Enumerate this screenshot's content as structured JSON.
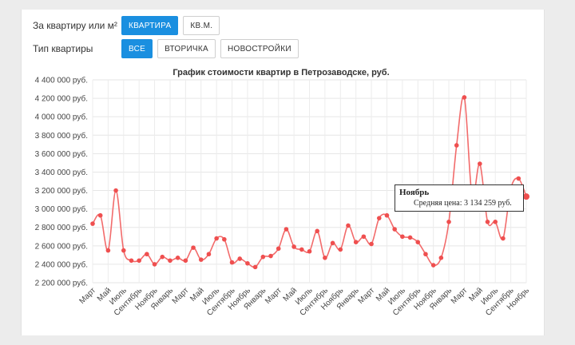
{
  "controls": {
    "area_label": "За квартиру или м²",
    "area_options": [
      "КВАРТИРА",
      "КВ.М."
    ],
    "area_selected": 0,
    "type_label": "Тип квартиры",
    "type_options": [
      "ВСЕ",
      "ВТОРИЧКА",
      "НОВОСТРОЙКИ"
    ],
    "type_selected": 0
  },
  "colors": {
    "accent": "#1a8fe0",
    "line": "#f26b6b",
    "point": "#ef4f4f"
  },
  "tooltip": {
    "title": "Ноябрь",
    "body": "Средняя цена: 3 134 259 руб."
  },
  "chart_data": {
    "type": "line",
    "title": "График стоимости квартир в Петрозаводске, руб.",
    "ylim": [
      2200000,
      4400000
    ],
    "yticks": [
      "4 400 000 руб.",
      "4 200 000 руб.",
      "4 000 000 руб.",
      "3 800 000 руб.",
      "3 600 000 руб.",
      "3 400 000 руб.",
      "3 200 000 руб.",
      "3 000 000 руб.",
      "2 800 000 руб.",
      "2 600 000 руб.",
      "2 400 000 руб.",
      "2 200 000 руб."
    ],
    "ytick_values": [
      4400000,
      4200000,
      4000000,
      3800000,
      3600000,
      3400000,
      3200000,
      3000000,
      2800000,
      2600000,
      2400000,
      2200000
    ],
    "xticks": [
      "Март",
      "Май",
      "Июль",
      "Сентябрь",
      "Ноябрь",
      "Январь",
      "Март",
      "Май",
      "Июль",
      "Сентябрь",
      "Ноябрь",
      "Январь",
      "Март",
      "Май",
      "Июль",
      "Сентябрь",
      "Ноябрь",
      "Январь",
      "Март",
      "Май",
      "Июль",
      "Сентябрь",
      "Ноябрь",
      "Январь",
      "Март",
      "Май",
      "Июль",
      "Сентябрь",
      "Ноябрь"
    ],
    "values": [
      2840000,
      2930000,
      2550000,
      3200000,
      2550000,
      2440000,
      2440000,
      2510000,
      2400000,
      2480000,
      2440000,
      2470000,
      2440000,
      2580000,
      2450000,
      2510000,
      2680000,
      2670000,
      2420000,
      2460000,
      2410000,
      2370000,
      2480000,
      2490000,
      2570000,
      2780000,
      2590000,
      2560000,
      2540000,
      2760000,
      2470000,
      2630000,
      2560000,
      2820000,
      2640000,
      2700000,
      2620000,
      2900000,
      2930000,
      2780000,
      2700000,
      2690000,
      2640000,
      2510000,
      2390000,
      2470000,
      2860000,
      3690000,
      4210000,
      3140000,
      3490000,
      2860000,
      2860000,
      2680000,
      3220000,
      3330000,
      3134259
    ],
    "highlight_index": 56,
    "grid": true,
    "legend": "none"
  }
}
